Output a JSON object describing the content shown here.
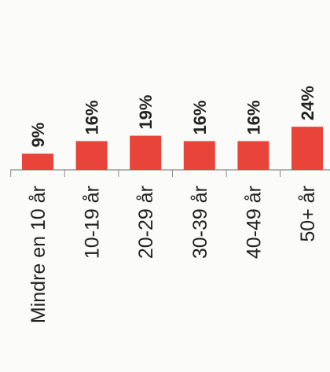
{
  "chart_data": {
    "type": "bar",
    "categories": [
      "Mindre en 10 år",
      "10-19 år",
      "20-29 år",
      "30-39 år",
      "40-49 år",
      "50+ år"
    ],
    "values": [
      9,
      16,
      19,
      16,
      16,
      24
    ],
    "value_labels": [
      "9%",
      "16%",
      "19%",
      "16%",
      "16%",
      "24%"
    ],
    "title": "",
    "xlabel": "",
    "ylabel": "",
    "ylim": [
      0,
      30
    ],
    "grid": false,
    "legend": "none",
    "bar_color": "#e8443a",
    "label_color": "#222222",
    "axis_color": "#8a8a8a"
  }
}
